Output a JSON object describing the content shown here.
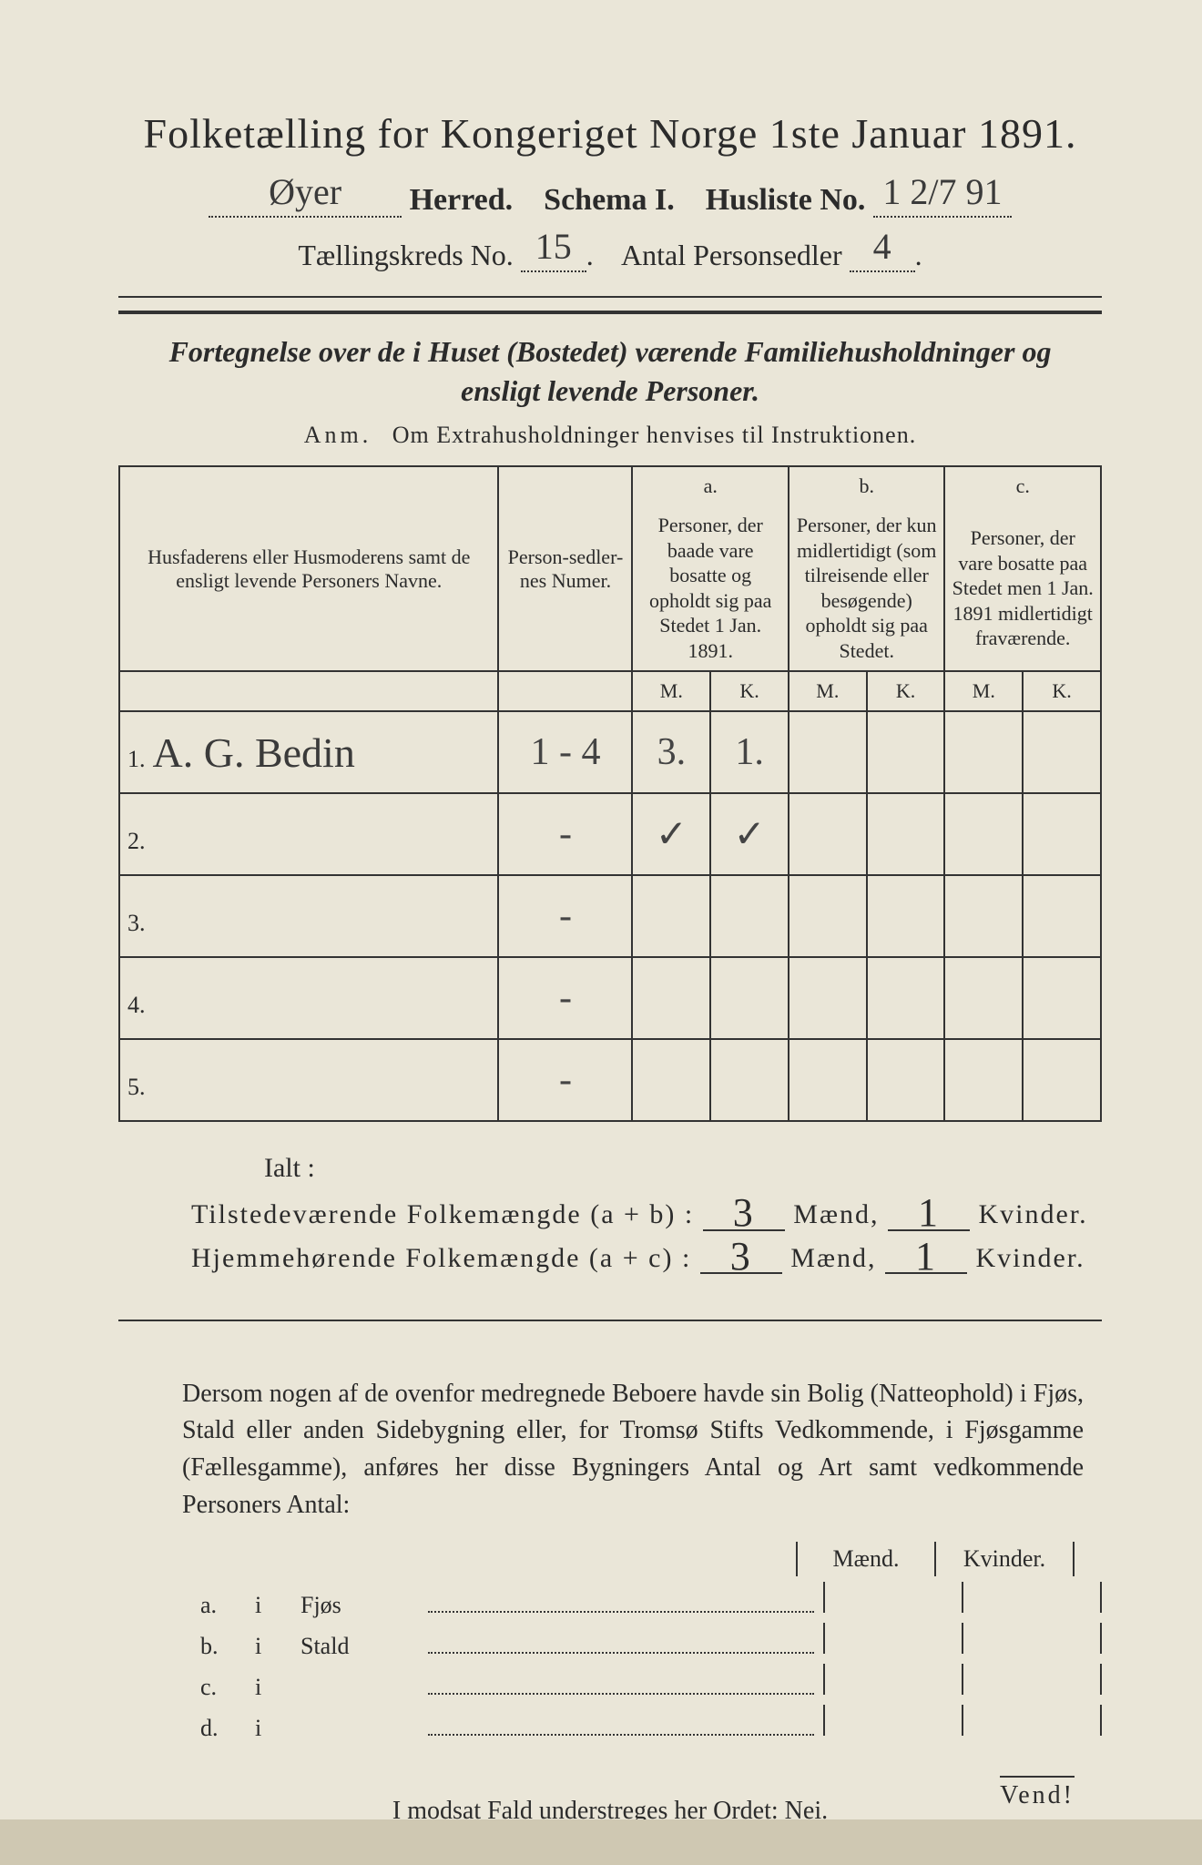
{
  "header": {
    "title": "Folketælling for Kongeriget Norge 1ste Januar 1891.",
    "herred_value": "Øyer",
    "herred_label": "Herred.",
    "schema_label": "Schema I.",
    "husliste_label": "Husliste No.",
    "husliste_value": "1 2/7 91",
    "kreds_label": "Tællingskreds No.",
    "kreds_value": "15",
    "antal_label": "Antal Personsedler",
    "antal_value": "4"
  },
  "subtitle": "Fortegnelse over de i Huset (Bostedet) værende Familiehusholdninger og ensligt levende Personer.",
  "anm": {
    "prefix": "Anm.",
    "text": "Om Extrahusholdninger henvises til Instruktionen."
  },
  "table": {
    "col_names": "Husfaderens eller Husmoderens samt de ensligt levende Personers Navne.",
    "col_num": "Person-sedler-nes Numer.",
    "col_a_label": "a.",
    "col_a": "Personer, der baade vare bosatte og opholdt sig paa Stedet 1 Jan. 1891.",
    "col_b_label": "b.",
    "col_b": "Personer, der kun midlertidigt (som tilreisende eller besøgende) opholdt sig paa Stedet.",
    "col_c_label": "c.",
    "col_c": "Personer, der vare bosatte paa Stedet men 1 Jan. 1891 midlertidigt fraværende.",
    "m": "M.",
    "k": "K.",
    "rows": [
      {
        "n": "1.",
        "name": "A. G. Bedin",
        "num": "1 - 4",
        "a_m": "3.",
        "a_k": "1.",
        "b_m": "",
        "b_k": "",
        "c_m": "",
        "c_k": ""
      },
      {
        "n": "2.",
        "name": "",
        "num": "-",
        "a_m": "✓",
        "a_k": "✓",
        "b_m": "",
        "b_k": "",
        "c_m": "",
        "c_k": ""
      },
      {
        "n": "3.",
        "name": "",
        "num": "-",
        "a_m": "",
        "a_k": "",
        "b_m": "",
        "b_k": "",
        "c_m": "",
        "c_k": ""
      },
      {
        "n": "4.",
        "name": "",
        "num": "-",
        "a_m": "",
        "a_k": "",
        "b_m": "",
        "b_k": "",
        "c_m": "",
        "c_k": ""
      },
      {
        "n": "5.",
        "name": "",
        "num": "-",
        "a_m": "",
        "a_k": "",
        "b_m": "",
        "b_k": "",
        "c_m": "",
        "c_k": ""
      }
    ]
  },
  "totals": {
    "ialt": "Ialt :",
    "line1_label": "Tilstedeværende Folkemængde (a + b) :",
    "line2_label": "Hjemmehørende Folkemængde (a + c) :",
    "maend": "Mænd,",
    "kvinder": "Kvinder.",
    "v_ab_m": "3",
    "v_ab_k": "1",
    "v_ac_m": "3",
    "v_ac_k": "1"
  },
  "paragraph": "Dersom nogen af de ovenfor medregnede Beboere havde sin Bolig (Natteophold) i Fjøs, Stald eller anden Sidebygning eller, for Tromsø Stifts Vedkommende, i Fjøsgamme (Fællesgamme), anføres her disse Bygningers Antal og Art samt vedkommende Personers Antal:",
  "mk": {
    "m": "Mænd.",
    "k": "Kvinder."
  },
  "abcd": [
    {
      "lbl": "a.",
      "i": "i",
      "name": "Fjøs"
    },
    {
      "lbl": "b.",
      "i": "i",
      "name": "Stald"
    },
    {
      "lbl": "c.",
      "i": "i",
      "name": ""
    },
    {
      "lbl": "d.",
      "i": "i",
      "name": ""
    }
  ],
  "nei": {
    "text": "I modsat Fald understreges her Ordet:",
    "word": "Nei."
  },
  "vend": "Vend!"
}
